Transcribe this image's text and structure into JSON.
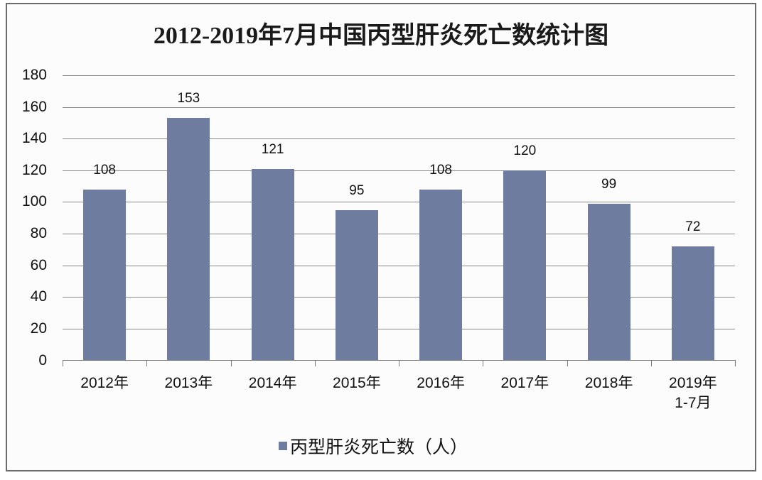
{
  "chart_data": {
    "type": "bar",
    "title": "2012-2019年7月中国丙型肝炎死亡数统计图",
    "categories": [
      "2012年",
      "2013年",
      "2014年",
      "2015年",
      "2016年",
      "2017年",
      "2018年",
      "2019年\n1-7月"
    ],
    "series": [
      {
        "name": "丙型肝炎死亡数（人）",
        "values": [
          108,
          153,
          121,
          95,
          108,
          120,
          99,
          72
        ],
        "color": "#6e7ca0"
      }
    ],
    "data_labels": [
      "108",
      "153",
      "121",
      "95",
      "108",
      "120",
      "99",
      "72"
    ],
    "xlabel": "",
    "ylabel": "",
    "ylim": [
      0,
      180
    ],
    "yticks": [
      "0",
      "20",
      "40",
      "60",
      "80",
      "100",
      "120",
      "140",
      "160",
      "180"
    ],
    "grid": true,
    "legend_position": "bottom"
  },
  "title": "2012-2019年7月中国丙型肝炎死亡数统计图",
  "legend": {
    "label": "丙型肝炎死亡数（人）"
  },
  "xlabels": [
    {
      "line1": "2012年",
      "line2": ""
    },
    {
      "line1": "2013年",
      "line2": ""
    },
    {
      "line1": "2014年",
      "line2": ""
    },
    {
      "line1": "2015年",
      "line2": ""
    },
    {
      "line1": "2016年",
      "line2": ""
    },
    {
      "line1": "2017年",
      "line2": ""
    },
    {
      "line1": "2018年",
      "line2": ""
    },
    {
      "line1": "2019年",
      "line2": "1-7月"
    }
  ]
}
